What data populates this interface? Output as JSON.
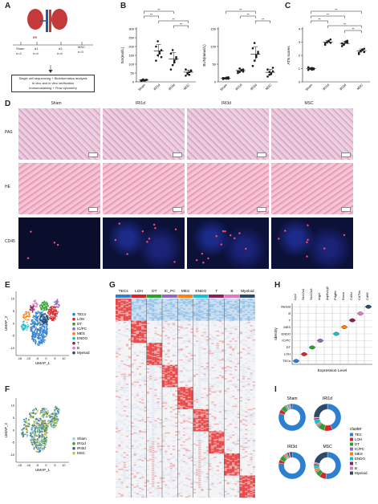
{
  "panel_labels": {
    "a": "A",
    "b": "B",
    "c": "C",
    "d": "D",
    "e": "E",
    "f": "F",
    "g": "G",
    "h": "H",
    "i": "I"
  },
  "panel_a": {
    "sham": "Sham",
    "sham_n": "n=2",
    "iri": "IRI",
    "d1": "d1",
    "d1_n": "n=4",
    "d3": "d3",
    "d3_n": "n=4",
    "msc": "MSC",
    "msc_n": "n=3",
    "methods": [
      "Single cell sequencing + Bioinformatics analysis",
      "In vivo and in vitro verification",
      "Immunostaining + Flow cytometry"
    ]
  },
  "sig": "**",
  "chart_data": [
    {
      "type": "scatter",
      "panel": "B-left",
      "ylabel": "Scr(mol/L)",
      "categories": [
        "Sham",
        "IRI1d",
        "IRI3d",
        "MSC"
      ],
      "ylim": [
        0,
        300
      ],
      "yticks": [
        0,
        50,
        100,
        150,
        200,
        250,
        300
      ],
      "color": "#1a1a1a",
      "means": [
        10,
        175,
        130,
        55
      ],
      "points": [
        [
          5,
          8,
          10,
          12,
          9,
          14,
          7,
          11
        ],
        [
          120,
          150,
          170,
          180,
          200,
          230,
          160,
          140
        ],
        [
          70,
          95,
          120,
          140,
          160,
          180,
          110,
          130
        ],
        [
          35,
          45,
          55,
          60,
          70,
          50,
          40,
          65
        ]
      ]
    },
    {
      "type": "scatter",
      "panel": "B-right",
      "ylabel": "BUN(mmol/L)",
      "categories": [
        "Sham",
        "IRI1d",
        "IRI3d",
        "MSC"
      ],
      "ylim": [
        0,
        150
      ],
      "yticks": [
        0,
        50,
        100,
        150
      ],
      "color": "#1a1a1a",
      "means": [
        10,
        32,
        78,
        27
      ],
      "points": [
        [
          8,
          10,
          12,
          9,
          11,
          10,
          9,
          13
        ],
        [
          25,
          28,
          32,
          35,
          30,
          38,
          33,
          29
        ],
        [
          45,
          60,
          75,
          80,
          95,
          110,
          70,
          85
        ],
        [
          15,
          20,
          25,
          30,
          35,
          28,
          22,
          40
        ]
      ]
    },
    {
      "type": "scatter",
      "panel": "C",
      "ylabel": "ATN scores",
      "categories": [
        "Sham",
        "IRI1d",
        "IRI3d",
        "MSC"
      ],
      "ylim": [
        0,
        4
      ],
      "yticks": [
        0,
        1,
        2,
        3,
        4
      ],
      "color": "#1a1a1a",
      "means": [
        1.0,
        3.0,
        2.9,
        2.35
      ],
      "points": [
        [
          0.9,
          1.0,
          1.05,
          0.95,
          1.1,
          1.0,
          0.92,
          1.02
        ],
        [
          2.8,
          3.0,
          3.1,
          3.2,
          2.9,
          3.0,
          3.05,
          2.95
        ],
        [
          2.7,
          2.8,
          3.0,
          3.1,
          2.9,
          2.85,
          3.05,
          2.95
        ],
        [
          2.1,
          2.3,
          2.4,
          2.5,
          2.2,
          2.35,
          2.45,
          2.25
        ]
      ]
    },
    {
      "type": "scatter",
      "panel": "E",
      "xlabel": "UMAP_1",
      "ylabel": "UMAP_2",
      "xticks": [
        -15,
        -10,
        -5,
        0,
        5,
        10
      ],
      "yticks": [
        -10,
        -5,
        0,
        5,
        10
      ],
      "legend": [
        {
          "name": "TECs",
          "color": "#2f7fd1"
        },
        {
          "name": "LOH",
          "color": "#d62728"
        },
        {
          "name": "DT",
          "color": "#2ca02c"
        },
        {
          "name": "IC/PC",
          "color": "#9467bd"
        },
        {
          "name": "MES",
          "color": "#ff7f0e"
        },
        {
          "name": "ENDO",
          "color": "#17becf"
        },
        {
          "name": "T",
          "color": "#8c1f5a"
        },
        {
          "name": "B",
          "color": "#e377c2"
        },
        {
          "name": "Myeloid",
          "color": "#2e4a66"
        }
      ]
    },
    {
      "type": "scatter",
      "panel": "F",
      "xlabel": "UMAP_1",
      "ylabel": "UMAP_2",
      "xticks": [
        -15,
        -10,
        -5,
        0,
        5,
        10
      ],
      "yticks": [
        -10,
        -5,
        0,
        5,
        10
      ],
      "legend": [
        {
          "name": "Sham",
          "color": "#8fd3e8"
        },
        {
          "name": "IRI1d",
          "color": "#4c9a3a"
        },
        {
          "name": "IRI3d",
          "color": "#2b6aa8"
        },
        {
          "name": "MSC",
          "color": "#d8b84a"
        }
      ]
    },
    {
      "type": "heatmap",
      "panel": "G",
      "columns": [
        {
          "name": "TECs",
          "color": "#2f7fd1"
        },
        {
          "name": "LOH",
          "color": "#d62728"
        },
        {
          "name": "DT",
          "color": "#2ca02c"
        },
        {
          "name": "IC_PC",
          "color": "#9467bd"
        },
        {
          "name": "MES",
          "color": "#ff7f0e"
        },
        {
          "name": "ENDO",
          "color": "#17becf"
        },
        {
          "name": "T",
          "color": "#8c1f5a"
        },
        {
          "name": "B",
          "color": "#e377c2"
        },
        {
          "name": "Myeloid",
          "color": "#2e4a66"
        }
      ]
    },
    {
      "type": "violin",
      "panel": "H",
      "xlabel": "Expression Level",
      "ylabel": "Identity",
      "genes": [
        "Lrp2",
        "Slc12a1",
        "Slc12a3",
        "Aqp2",
        "Atp6v1g3",
        "Pdgfrb",
        "Emcn",
        "Cd3d",
        "Cd79a",
        "Cd68"
      ],
      "identities": [
        "TECs",
        "LOH",
        "DT",
        "IC/PC",
        "ENDO",
        "MES",
        "T",
        "B",
        "Meloid"
      ],
      "colors": [
        "#2f7fd1",
        "#d62728",
        "#2ca02c",
        "#9467bd",
        "#17becf",
        "#ff7f0e",
        "#8c1f5a",
        "#e377c2",
        "#2e4a66"
      ]
    },
    {
      "type": "pie",
      "panel": "I",
      "legend_title": "cluster",
      "legend": [
        {
          "name": "TEC",
          "color": "#2f7fd1"
        },
        {
          "name": "LOH",
          "color": "#d62728"
        },
        {
          "name": "DT",
          "color": "#2ca02c"
        },
        {
          "name": "IC/PC",
          "color": "#9467bd"
        },
        {
          "name": "MES",
          "color": "#ff7f0e"
        },
        {
          "name": "ENDO",
          "color": "#17becf"
        },
        {
          "name": "T",
          "color": "#8c1f5a"
        },
        {
          "name": "B",
          "color": "#e377c2"
        },
        {
          "name": "Myeloid",
          "color": "#2e4a66"
        }
      ],
      "donuts": [
        {
          "name": "Sham",
          "values": [
            80,
            5,
            6,
            2,
            1,
            2,
            1,
            1,
            2
          ]
        },
        {
          "name": "IRI1d",
          "values": [
            44,
            10,
            8,
            2,
            2,
            6,
            2,
            1,
            25
          ]
        },
        {
          "name": "IRI3d",
          "values": [
            78,
            4,
            6,
            2,
            2,
            2,
            2,
            1,
            3
          ]
        },
        {
          "name": "MSC",
          "values": [
            52,
            8,
            6,
            2,
            3,
            4,
            2,
            2,
            21
          ]
        }
      ]
    }
  ],
  "panel_d": {
    "columns": [
      "Sham",
      "IRI1d",
      "IRI3d",
      "MSC"
    ],
    "rows": [
      "PAS",
      "HE",
      "CD45"
    ]
  }
}
